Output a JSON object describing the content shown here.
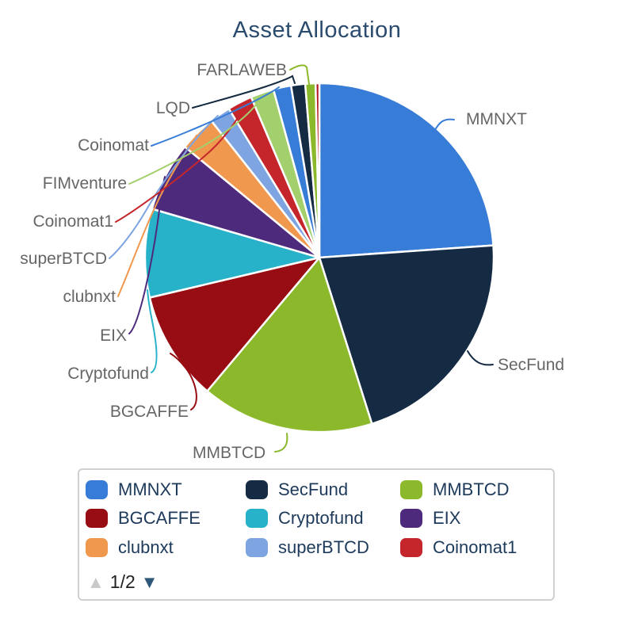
{
  "title": "Asset Allocation",
  "chart_data": {
    "type": "pie",
    "title": "Asset Allocation",
    "direction": "clockwise",
    "start_angle_deg": 0,
    "slices": [
      {
        "label": "MMNXT",
        "value": 23.9,
        "color": "#377cd6"
      },
      {
        "label": "SecFund",
        "value": 21.25,
        "color": "#152b43"
      },
      {
        "label": "MMBTCD",
        "value": 16.0,
        "color": "#8cb82b"
      },
      {
        "label": "BGCAFFE",
        "value": 10.2,
        "color": "#970d13"
      },
      {
        "label": "Cryptofund",
        "value": 8.2,
        "color": "#28b2c9"
      },
      {
        "label": "EIX",
        "value": 6.45,
        "color": "#4e2a7d"
      },
      {
        "label": "clubnxt",
        "value": 3.4,
        "color": "#f0994e"
      },
      {
        "label": "superBTCD",
        "value": 1.95,
        "color": "#7ea5e1"
      },
      {
        "label": "Coinomat1",
        "value": 2.3,
        "color": "#c4262b"
      },
      {
        "label": "FIMventure",
        "value": 2.15,
        "color": "#a3cf6c"
      },
      {
        "label": "Coinomat",
        "value": 1.65,
        "color": "#377cd6"
      },
      {
        "label": "LQD",
        "value": 1.3,
        "color": "#152b43"
      },
      {
        "label": "FARLAWEB",
        "value": 0.95,
        "color": "#8cb82b"
      },
      {
        "label": "",
        "value": 0.35,
        "color": "#b5191f"
      }
    ],
    "legend_position": "bottom",
    "grid": false
  },
  "legend": {
    "page_indicator": "1/2",
    "up_arrow": "▲",
    "down_arrow": "▼"
  },
  "colors": {
    "background": "#ffffff",
    "title_text": "#2a4b6e",
    "label_text": "#666666",
    "legend_text": "#1d3a5a",
    "legend_border": "#d0d0d0",
    "slice_border": "#ffffff",
    "pagination_up": "#c9c9c9",
    "pagination_down": "#2e5779"
  }
}
